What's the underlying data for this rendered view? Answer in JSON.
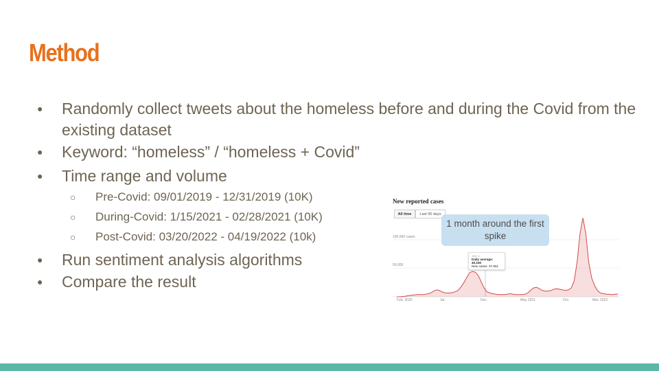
{
  "slide": {
    "title": "Method",
    "bullets": [
      "Randomly collect tweets about the homeless before and during the Covid from the existing dataset",
      "Keyword: “homeless” / “homeless + Covid”",
      "Time range and volume"
    ],
    "sub_bullets": [
      "Pre-Covid: 09/01/2019 - 12/31/2019 (10K)",
      "During-Covid: 1/15/2021 - 02/28/2021 (10K)",
      "Post-Covid: 03/20/2022 - 04/19/2022 (10k)"
    ],
    "bullets_after": [
      "Run sentiment analysis algorithms",
      "Compare the result"
    ],
    "callout": "1 month around the first spike",
    "accent_color": "#e8711c",
    "text_color": "#6e6453",
    "bar_color": "#5bb8a9"
  },
  "chart_data": {
    "type": "area",
    "title": "New reported cases",
    "tabs": [
      "All time",
      "Last 90 days"
    ],
    "active_tab": "All time",
    "y_ticks": [
      "100,000 cases",
      "50,000"
    ],
    "x_ticks": [
      "Feb. 2020",
      "Jul.",
      "Dec.",
      "May 2021",
      "Oct.",
      "Mar. 2022"
    ],
    "ylim": [
      0,
      135000
    ],
    "series": [
      {
        "color": "#d24b4b",
        "values": [
          0,
          0,
          500,
          1000,
          2000,
          2500,
          3000,
          3500,
          3500,
          3500,
          4000,
          5000,
          7000,
          10000,
          11000,
          9000,
          7000,
          6000,
          6000,
          6500,
          8000,
          10000,
          15000,
          22000,
          30000,
          38000,
          40150,
          39000,
          34000,
          24000,
          14000,
          8000,
          6000,
          5000,
          4000,
          3500,
          3500,
          3500,
          4000,
          5000,
          4000,
          3500,
          3500,
          3500,
          4000,
          6000,
          10000,
          14000,
          15000,
          13000,
          10000,
          9000,
          9000,
          10000,
          12000,
          13000,
          12000,
          11000,
          10000,
          11000,
          14000,
          25000,
          55000,
          100000,
          125000,
          100000,
          55000,
          30000,
          18000,
          10000,
          6000,
          5000,
          4000,
          4000,
          3500,
          4000,
          4500
        ]
      }
    ],
    "tooltip": {
      "date": "JAN. 1",
      "daily_average": "Daily average: 40,150",
      "new_cases": "New cases: 37,951"
    }
  }
}
